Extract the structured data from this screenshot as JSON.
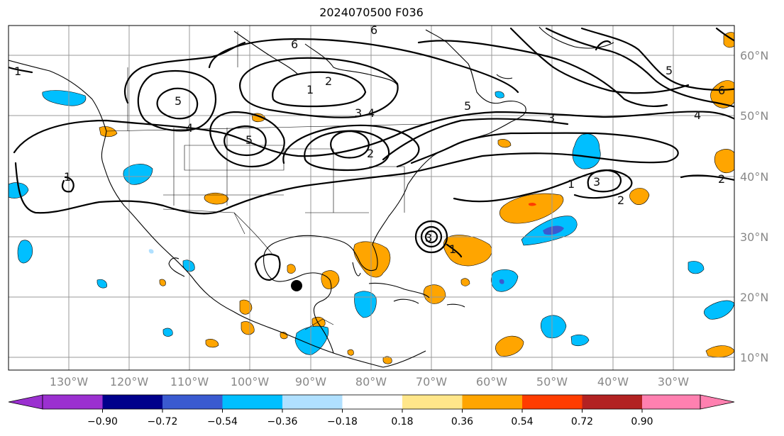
{
  "title": "2024070500 F036",
  "lat_labels": [
    "60°N",
    "50°N",
    "40°N",
    "30°N",
    "20°N",
    "10°N"
  ],
  "lon_labels": [
    "130°W",
    "120°W",
    "110°W",
    "100°W",
    "90°W",
    "80°W",
    "70°W",
    "60°W",
    "50°W",
    "40°W",
    "30°W"
  ],
  "colorbar": {
    "ticks": [
      "−0.90",
      "−0.72",
      "−0.54",
      "−0.36",
      "−0.18",
      "0.18",
      "0.36",
      "0.54",
      "0.72",
      "0.90"
    ],
    "colors": [
      "#9b30d0",
      "#00008b",
      "#3a5ad0",
      "#00bfff",
      "#b0e0ff",
      "#ffffff",
      "#ffe68a",
      "#ffa500",
      "#ff3c00",
      "#b22222",
      "#ff80b0"
    ]
  },
  "contour_labels": [
    "1",
    "2",
    "3",
    "4",
    "5",
    "6"
  ],
  "storm_marker": "storm-center-dot"
}
